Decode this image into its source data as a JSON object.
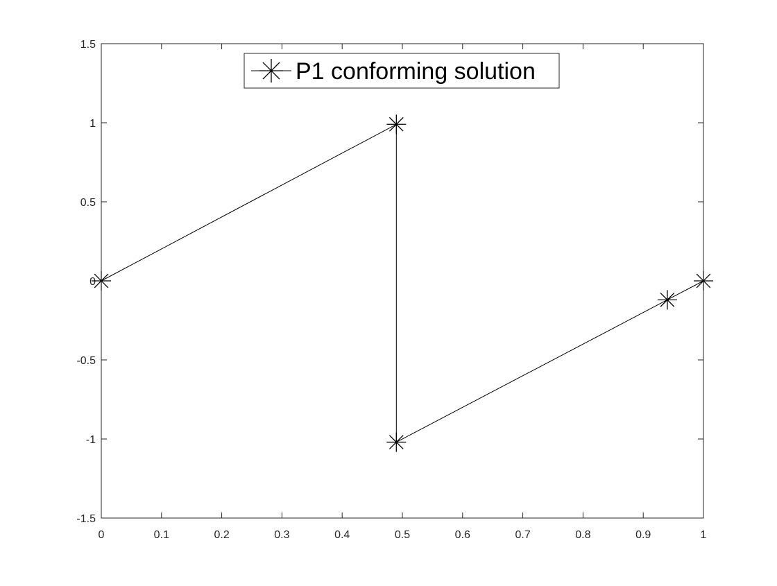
{
  "chart_data": {
    "type": "line",
    "title": "",
    "xlabel": "",
    "ylabel": "",
    "xlim": [
      0,
      1
    ],
    "ylim": [
      -1.5,
      1.5
    ],
    "xticks": [
      0,
      0.1,
      0.2,
      0.3,
      0.4,
      0.5,
      0.6,
      0.7,
      0.8,
      0.9,
      1
    ],
    "xtick_labels": [
      "0",
      "0.1",
      "0.2",
      "0.3",
      "0.4",
      "0.5",
      "0.6",
      "0.7",
      "0.8",
      "0.9",
      "1"
    ],
    "yticks": [
      -1.5,
      -1,
      -0.5,
      0,
      0.5,
      1,
      1.5
    ],
    "ytick_labels": [
      "-1.5",
      "-1",
      "-0.5",
      "0",
      "0.5",
      "1",
      "1.5"
    ],
    "grid": false,
    "legend": {
      "placement": "top-center",
      "entries": [
        "P1 conforming solution"
      ]
    },
    "series": [
      {
        "name": "P1 conforming solution",
        "color": "#000000",
        "marker": "asterisk",
        "x": [
          0,
          0.49,
          0.49,
          0.94,
          1
        ],
        "y": [
          0,
          0.99,
          -1.02,
          -0.12,
          0
        ]
      }
    ]
  }
}
